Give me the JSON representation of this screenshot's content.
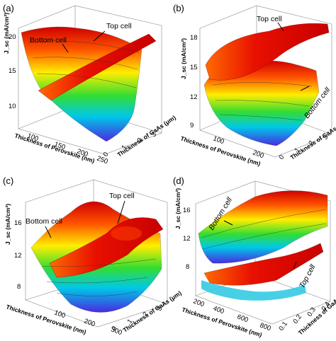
{
  "colors": {
    "surface_high": "#e01010",
    "surface_mid": "#e8e800",
    "surface_low": "#4040e0",
    "box": "#7a7a7a",
    "contour": "#3a3a3a"
  },
  "chart_data": [
    {
      "panel": "(a)",
      "type": "surface",
      "zlabel": "J_sc (mA/cm²)",
      "xlabel": "Thickness of Perovskite (nm)",
      "ylabel": "Thickness of GaAs (μm)",
      "x_ticks": [
        "100",
        "150",
        "200",
        "250"
      ],
      "y_ticks": [
        "0",
        "1",
        "2",
        "3"
      ],
      "z_ticks": [
        "10",
        "15",
        "20"
      ],
      "zlim": [
        8,
        21
      ],
      "annotations": [
        "Bottom cell",
        "Top cell"
      ],
      "series": [
        {
          "name": "Bottom cell",
          "x": [
            100,
            150,
            200,
            250
          ],
          "values": [
            20,
            17,
            14,
            11
          ]
        },
        {
          "name": "Top cell",
          "x": [
            100,
            150,
            200,
            250
          ],
          "values": [
            13,
            16,
            18,
            19.5
          ]
        }
      ]
    },
    {
      "panel": "(b)",
      "type": "surface",
      "zlabel": "J_sc (mA/cm²)",
      "xlabel": "Thickness of Perovskite (nm)",
      "ylabel": "Thickness of GaAs (μm)",
      "x_ticks": [
        "100",
        "200"
      ],
      "y_ticks": [
        "0",
        "1",
        "2",
        "3"
      ],
      "z_ticks": [
        "9",
        "12",
        "15",
        "18"
      ],
      "zlim": [
        8,
        19
      ],
      "annotations": [
        "Top cell",
        "Bottom cell"
      ],
      "series": [
        {
          "name": "Top cell",
          "x": [
            50,
            100,
            200,
            280
          ],
          "values": [
            15,
            16.5,
            17.5,
            18
          ]
        },
        {
          "name": "Bottom cell",
          "x": [
            50,
            100,
            200,
            280
          ],
          "values": [
            13,
            11.5,
            10.5,
            9.5
          ]
        }
      ]
    },
    {
      "panel": "(c)",
      "type": "surface",
      "zlabel": "J_sc (mA/cm²)",
      "xlabel": "Thickness of Perovskite (nm)",
      "ylabel": "Thickness of GaAs (μm)",
      "x_ticks": [
        "100",
        "200",
        "300"
      ],
      "y_ticks": [
        "0",
        "1",
        "2",
        "3"
      ],
      "z_ticks": [
        "8",
        "12",
        "16"
      ],
      "zlim": [
        7,
        18
      ],
      "annotations": [
        "Bottom cell",
        "Top cell"
      ],
      "series": [
        {
          "name": "Bottom cell",
          "x": [
            50,
            100,
            200,
            300
          ],
          "values": [
            16,
            15,
            13,
            11
          ]
        },
        {
          "name": "Top cell",
          "x": [
            50,
            100,
            200,
            300
          ],
          "values": [
            9,
            12,
            14.5,
            15
          ]
        }
      ]
    },
    {
      "panel": "(d)",
      "type": "surface",
      "zlabel": "J_sc (mA/cm²)",
      "xlabel": "Thickness of Perovskite (nm)",
      "ylabel": "Thickness of GaAs (μm)",
      "x_ticks": [
        "200",
        "400",
        "600",
        "800"
      ],
      "y_ticks": [
        "0.1",
        "0.2",
        "0.3",
        "0.4"
      ],
      "z_ticks": [
        "8",
        "12",
        "16"
      ],
      "zlim": [
        6,
        18
      ],
      "annotations": [
        "Bottom cell",
        "Top cell"
      ],
      "series": [
        {
          "name": "Bottom cell",
          "x": [
            200,
            400,
            600,
            800
          ],
          "values": [
            16,
            16.5,
            17,
            17
          ]
        },
        {
          "name": "Top cell",
          "x": [
            200,
            400,
            600,
            800
          ],
          "values": [
            8,
            9,
            10,
            11
          ]
        }
      ]
    }
  ]
}
